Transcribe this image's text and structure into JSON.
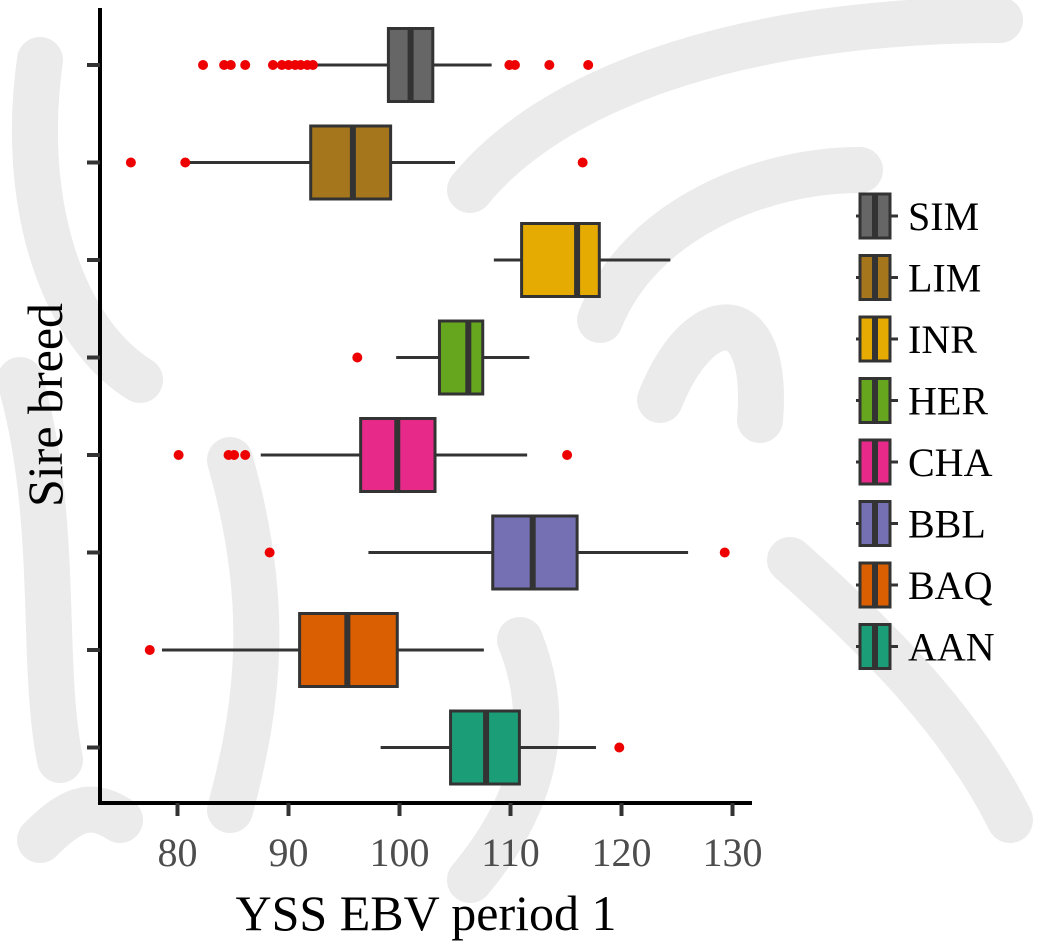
{
  "chart_data": {
    "type": "boxplot",
    "orientation": "horizontal",
    "xlabel": "YSS EBV period 1",
    "ylabel": "Sire breed",
    "xlim": [
      73.5,
      132
    ],
    "x_ticks": [
      80,
      90,
      100,
      110,
      120,
      130
    ],
    "grid": false,
    "legend_position": "right",
    "legend_title": "",
    "categories_top_to_bottom": [
      "SIM",
      "LIM",
      "INR",
      "HER",
      "CHA",
      "BBL",
      "BAQ",
      "AAN"
    ],
    "series": [
      {
        "name": "SIM",
        "color": "#666666",
        "whisker_low": 92.5,
        "q1": 99,
        "median": 101,
        "q3": 103,
        "whisker_high": 108.3,
        "outliers": [
          82.3,
          84.2,
          84.8,
          86.1,
          88.6,
          89.4,
          90.0,
          90.6,
          91.1,
          91.7,
          92.2,
          109.9,
          110.4,
          113.5,
          117.0
        ]
      },
      {
        "name": "LIM",
        "color": "#a6761d",
        "whisker_low": 81,
        "q1": 92,
        "median": 95.8,
        "q3": 99.2,
        "whisker_high": 105,
        "outliers": [
          75.8,
          80.7,
          116.5
        ]
      },
      {
        "name": "INR",
        "color": "#e6ab02",
        "whisker_low": 108.5,
        "q1": 111,
        "median": 116,
        "q3": 118,
        "whisker_high": 124.4,
        "outliers": []
      },
      {
        "name": "HER",
        "color": "#66a61e",
        "whisker_low": 99.7,
        "q1": 103.6,
        "median": 106.2,
        "q3": 107.5,
        "whisker_high": 111.7,
        "outliers": [
          96.2
        ]
      },
      {
        "name": "CHA",
        "color": "#e7298a",
        "whisker_low": 87.5,
        "q1": 96.5,
        "median": 99.8,
        "q3": 103.2,
        "whisker_high": 111.5,
        "outliers": [
          80.1,
          84.6,
          85.1,
          86.1,
          115.1
        ]
      },
      {
        "name": "BBL",
        "color": "#7570b3",
        "whisker_low": 97.2,
        "q1": 108.4,
        "median": 112,
        "q3": 116,
        "whisker_high": 126,
        "outliers": [
          88.3,
          129.3
        ]
      },
      {
        "name": "BAQ",
        "color": "#d95f02",
        "whisker_low": 78.6,
        "q1": 91,
        "median": 95.3,
        "q3": 99.8,
        "whisker_high": 107.6,
        "outliers": [
          77.5
        ]
      },
      {
        "name": "AAN",
        "color": "#1b9e77",
        "whisker_low": 98.3,
        "q1": 104.6,
        "median": 107.8,
        "q3": 110.8,
        "whisker_high": 117.7,
        "outliers": [
          119.8
        ]
      }
    ]
  }
}
